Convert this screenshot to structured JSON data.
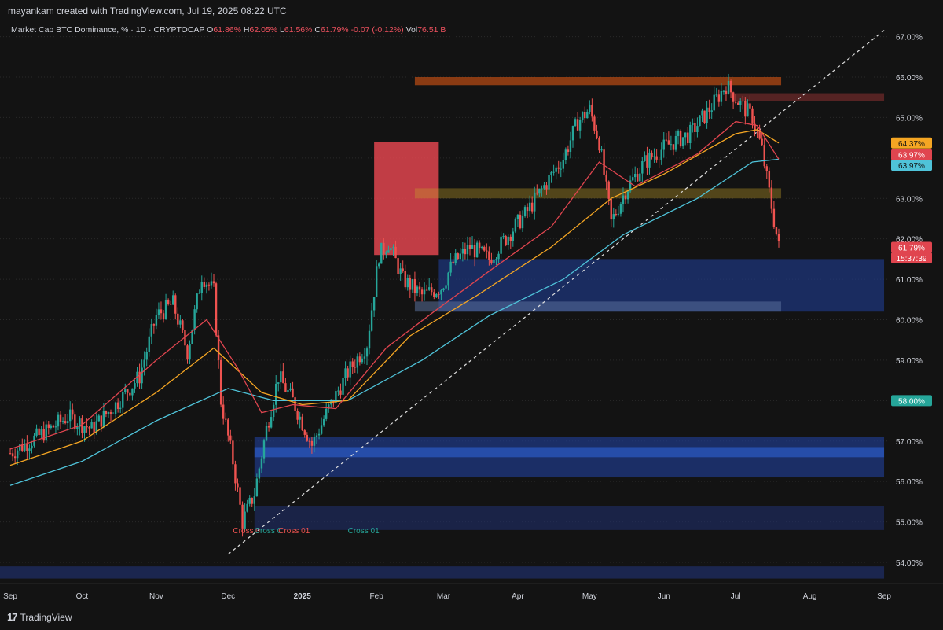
{
  "header": {
    "credit": "mayankam created with TradingView.com, Jul 19, 2025 08:22 UTC"
  },
  "legend": {
    "symbol": "Market Cap BTC Dominance, % · 1D · CRYPTOCAP",
    "o_label": "O",
    "o_value": "61.86%",
    "h_label": "H",
    "h_value": "62.05%",
    "l_label": "L",
    "l_value": "61.56%",
    "c_label": "C",
    "c_value": "61.79%",
    "change": "-0.07 (-0.12%)",
    "vol_label": "Vol",
    "vol_value": "76.51 B"
  },
  "footer": {
    "brand": "TradingView",
    "logo": "17"
  },
  "colors": {
    "background": "#131313",
    "up": "#26a69a",
    "down": "#ef5350",
    "ema_fast": "#e0454f",
    "ema_mid": "#f5a623",
    "ema_slow": "#4fc3d9",
    "trendline": "#e0e0e0"
  },
  "chart_data": {
    "type": "candlestick",
    "title": "Market Cap BTC Dominance, % · 1D · CRYPTOCAP",
    "ylim": [
      53.6,
      67.4
    ],
    "y_ticks": [
      "67.00%",
      "66.00%",
      "65.00%",
      "63.00%",
      "62.00%",
      "61.00%",
      "60.00%",
      "59.00%",
      "57.00%",
      "56.00%",
      "55.00%",
      "54.00%"
    ],
    "x_ticks": [
      {
        "label": "Sep",
        "bold": false
      },
      {
        "label": "Oct",
        "bold": false
      },
      {
        "label": "Nov",
        "bold": false
      },
      {
        "label": "Dec",
        "bold": false
      },
      {
        "label": "2025",
        "bold": true
      },
      {
        "label": "Feb",
        "bold": false
      },
      {
        "label": "Mar",
        "bold": false
      },
      {
        "label": "Apr",
        "bold": false
      },
      {
        "label": "May",
        "bold": false
      },
      {
        "label": "Jun",
        "bold": false
      },
      {
        "label": "Jul",
        "bold": false
      },
      {
        "label": "Aug",
        "bold": false
      },
      {
        "label": "Sep",
        "bold": false
      }
    ],
    "price_path": [
      [
        "2024-09-01",
        56.7
      ],
      [
        "2024-09-15",
        57.2
      ],
      [
        "2024-09-25",
        57.6
      ],
      [
        "2024-10-05",
        57.3
      ],
      [
        "2024-10-15",
        57.9
      ],
      [
        "2024-10-25",
        58.6
      ],
      [
        "2024-11-01",
        60.1
      ],
      [
        "2024-11-08",
        60.4
      ],
      [
        "2024-11-14",
        59.2
      ],
      [
        "2024-11-20",
        61.1
      ],
      [
        "2024-11-25",
        60.7
      ],
      [
        "2024-11-28",
        58.0
      ],
      [
        "2024-12-03",
        56.5
      ],
      [
        "2024-12-07",
        55.0
      ],
      [
        "2024-12-12",
        55.7
      ],
      [
        "2024-12-17",
        57.3
      ],
      [
        "2024-12-22",
        58.6
      ],
      [
        "2024-12-28",
        58.0
      ],
      [
        "2025-01-05",
        56.9
      ],
      [
        "2025-01-12",
        57.8
      ],
      [
        "2025-01-20",
        58.7
      ],
      [
        "2025-01-28",
        59.4
      ],
      [
        "2025-02-02",
        61.6
      ],
      [
        "2025-02-06",
        61.9
      ],
      [
        "2025-02-12",
        61.0
      ],
      [
        "2025-02-20",
        60.6
      ],
      [
        "2025-02-28",
        60.8
      ],
      [
        "2025-03-05",
        61.4
      ],
      [
        "2025-03-12",
        61.8
      ],
      [
        "2025-03-20",
        61.5
      ],
      [
        "2025-03-28",
        62.1
      ],
      [
        "2025-04-04",
        62.6
      ],
      [
        "2025-04-12",
        63.3
      ],
      [
        "2025-04-20",
        64.0
      ],
      [
        "2025-04-26",
        64.9
      ],
      [
        "2025-05-01",
        65.2
      ],
      [
        "2025-05-05",
        64.4
      ],
      [
        "2025-05-10",
        62.4
      ],
      [
        "2025-05-16",
        63.2
      ],
      [
        "2025-05-24",
        63.9
      ],
      [
        "2025-06-02",
        64.3
      ],
      [
        "2025-06-12",
        64.6
      ],
      [
        "2025-06-20",
        65.2
      ],
      [
        "2025-06-27",
        65.8
      ],
      [
        "2025-07-02",
        65.4
      ],
      [
        "2025-07-08",
        65.0
      ],
      [
        "2025-07-12",
        64.2
      ],
      [
        "2025-07-16",
        62.8
      ],
      [
        "2025-07-19",
        61.79
      ]
    ],
    "last_close": 61.79,
    "ema_fast_path": [
      [
        "2024-09-01",
        56.8
      ],
      [
        "2024-10-01",
        57.4
      ],
      [
        "2024-11-01",
        59.0
      ],
      [
        "2024-11-22",
        60.0
      ],
      [
        "2024-12-05",
        58.8
      ],
      [
        "2024-12-15",
        57.7
      ],
      [
        "2024-12-28",
        57.9
      ],
      [
        "2025-01-15",
        57.8
      ],
      [
        "2025-02-05",
        59.3
      ],
      [
        "2025-02-25",
        60.2
      ],
      [
        "2025-03-20",
        61.2
      ],
      [
        "2025-04-15",
        62.3
      ],
      [
        "2025-05-05",
        63.9
      ],
      [
        "2025-05-20",
        63.3
      ],
      [
        "2025-06-15",
        64.1
      ],
      [
        "2025-07-01",
        64.9
      ],
      [
        "2025-07-10",
        64.8
      ],
      [
        "2025-07-19",
        63.97
      ]
    ],
    "ema_mid_path": [
      [
        "2024-09-01",
        56.4
      ],
      [
        "2024-10-01",
        57.0
      ],
      [
        "2024-11-01",
        58.2
      ],
      [
        "2024-11-25",
        59.3
      ],
      [
        "2024-12-15",
        58.2
      ],
      [
        "2025-01-01",
        57.9
      ],
      [
        "2025-01-20",
        58.0
      ],
      [
        "2025-02-15",
        59.6
      ],
      [
        "2025-03-15",
        60.6
      ],
      [
        "2025-04-15",
        61.8
      ],
      [
        "2025-05-10",
        63.0
      ],
      [
        "2025-06-01",
        63.6
      ],
      [
        "2025-07-01",
        64.6
      ],
      [
        "2025-07-10",
        64.7
      ],
      [
        "2025-07-19",
        64.37
      ]
    ],
    "ema_slow_path": [
      [
        "2024-09-01",
        55.9
      ],
      [
        "2024-10-01",
        56.5
      ],
      [
        "2024-11-01",
        57.5
      ],
      [
        "2024-12-01",
        58.3
      ],
      [
        "2024-12-20",
        58.0
      ],
      [
        "2025-01-20",
        58.0
      ],
      [
        "2025-02-20",
        59.0
      ],
      [
        "2025-03-20",
        60.1
      ],
      [
        "2025-04-20",
        61.0
      ],
      [
        "2025-05-15",
        62.1
      ],
      [
        "2025-06-15",
        63.0
      ],
      [
        "2025-07-08",
        63.9
      ],
      [
        "2025-07-19",
        63.97
      ]
    ],
    "trendline": [
      [
        "2024-12-01",
        54.2
      ],
      [
        "2025-09-02",
        67.2
      ]
    ],
    "zones": [
      {
        "from": "2025-01-31",
        "to": "2025-02-27",
        "y1": 61.6,
        "y2": 64.4,
        "color": "#e0454f",
        "opacity": 0.85
      },
      {
        "from": "2025-02-17",
        "to": "2025-07-20",
        "y1": 63.0,
        "y2": 63.25,
        "color": "#c9a227",
        "opacity": 0.35
      },
      {
        "from": "2025-02-17",
        "to": "2025-07-20",
        "y1": 65.8,
        "y2": 66.0,
        "color": "#b34a14",
        "opacity": 0.75
      },
      {
        "from": "2025-06-30",
        "to": "2025-09-01",
        "y1": 65.4,
        "y2": 65.6,
        "color": "#7a2c2c",
        "opacity": 0.65
      },
      {
        "from": "2025-02-27",
        "to": "2025-09-01",
        "y1": 60.2,
        "y2": 61.5,
        "color": "#1f3a8a",
        "opacity": 0.65
      },
      {
        "from": "2025-02-17",
        "to": "2025-07-20",
        "y1": 60.2,
        "y2": 60.45,
        "color": "#5a6f9a",
        "opacity": 0.55
      },
      {
        "from": "2024-12-12",
        "to": "2025-09-01",
        "y1": 56.1,
        "y2": 57.1,
        "color": "#1f3a8a",
        "opacity": 0.7
      },
      {
        "from": "2024-12-12",
        "to": "2025-09-01",
        "y1": 56.6,
        "y2": 56.85,
        "color": "#2f62d6",
        "opacity": 0.6
      },
      {
        "from": "2024-12-12",
        "to": "2025-09-01",
        "y1": 54.8,
        "y2": 55.4,
        "color": "#1f2f6a",
        "opacity": 0.6
      },
      {
        "from": "2024-08-01",
        "to": "2025-09-01",
        "y1": 53.6,
        "y2": 53.9,
        "color": "#1f2f6a",
        "opacity": 0.7
      }
    ],
    "cross_labels": [
      {
        "text": "Cross 0",
        "date": "2024-12-03",
        "y": 54.8,
        "color": "#ef5350"
      },
      {
        "text": "Cross 0",
        "date": "2024-12-12",
        "y": 54.8,
        "color": "#26a69a"
      },
      {
        "text": "Cross 01",
        "date": "2024-12-22",
        "y": 54.8,
        "color": "#ef5350"
      },
      {
        "text": "Cross 01",
        "date": "2025-01-20",
        "y": 54.8,
        "color": "#26a69a"
      }
    ],
    "price_markers": [
      {
        "value": "64.37%",
        "y": 64.37,
        "color": "#f5a623",
        "text_color": "#131313"
      },
      {
        "value": "63.97%",
        "y": 64.08,
        "color": "#e0454f",
        "text_color": "#ffffff"
      },
      {
        "value": "63.97%",
        "y": 63.82,
        "color": "#4fc3d9",
        "text_color": "#131313"
      },
      {
        "value": "61.79%",
        "y": 61.79,
        "color": "#e0454f",
        "text_color": "#ffffff"
      },
      {
        "value": "15:37:39",
        "y": 61.53,
        "color": "#e0454f",
        "text_color": "#ffffff"
      },
      {
        "value": "58.00%",
        "y": 58.0,
        "color": "#26a69a",
        "text_color": "#ffffff"
      }
    ]
  }
}
